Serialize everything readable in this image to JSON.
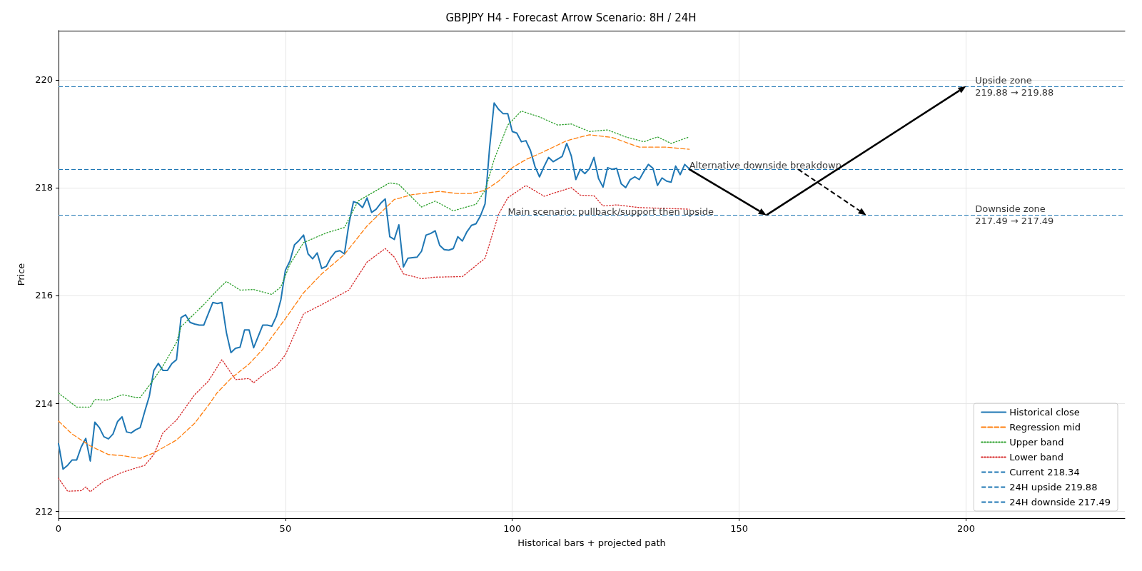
{
  "chart_data": {
    "type": "line",
    "title": "GBPJPY H4 - Forecast Arrow Scenario: 8H / 24H",
    "xlabel": "Historical bars + projected path",
    "ylabel": "Price",
    "x": [
      0,
      1,
      2,
      3,
      4,
      5,
      6,
      7,
      8,
      9,
      10,
      11,
      12,
      13,
      14,
      15,
      16,
      17,
      18,
      19,
      20,
      21,
      22,
      23,
      24,
      25,
      26,
      27,
      28,
      29,
      30,
      31,
      32,
      33,
      34,
      35,
      36,
      37,
      38,
      39,
      40,
      41,
      42,
      43,
      44,
      45,
      46,
      47,
      48,
      49,
      50,
      51,
      52,
      53,
      54,
      55,
      56,
      57,
      58,
      59,
      60,
      61,
      62,
      63,
      64,
      65,
      66,
      67,
      68,
      69,
      70,
      71,
      72,
      73,
      74,
      75,
      76,
      77,
      78,
      79,
      80,
      81,
      82,
      83,
      84,
      85,
      86,
      87,
      88,
      89,
      90,
      91,
      92,
      93,
      94,
      95,
      96,
      97,
      98,
      99,
      100,
      101,
      102,
      103,
      104,
      105,
      106,
      107,
      108,
      109,
      110,
      111,
      112,
      113,
      114,
      115,
      116,
      117,
      118,
      119,
      120,
      121,
      122,
      123,
      124,
      125,
      126,
      127,
      128,
      129,
      130,
      131,
      132,
      133,
      134,
      135,
      136,
      137,
      138,
      139
    ],
    "series": [
      {
        "name": "Historical close",
        "color": "#1f77b4",
        "line_style": "solid",
        "values": [
          213.25,
          212.78,
          212.85,
          212.95,
          212.95,
          213.19,
          213.35,
          212.93,
          213.65,
          213.55,
          213.38,
          213.34,
          213.43,
          213.66,
          213.75,
          213.47,
          213.45,
          213.51,
          213.55,
          213.85,
          214.13,
          214.61,
          214.74,
          214.61,
          214.61,
          214.74,
          214.81,
          215.59,
          215.64,
          215.5,
          215.47,
          215.45,
          215.45,
          215.66,
          215.87,
          215.85,
          215.87,
          215.31,
          214.94,
          215.02,
          215.04,
          215.36,
          215.36,
          215.03,
          215.24,
          215.45,
          215.45,
          215.43,
          215.61,
          215.92,
          216.47,
          216.64,
          216.94,
          217.02,
          217.12,
          216.77,
          216.68,
          216.79,
          216.5,
          216.54,
          216.7,
          216.81,
          216.83,
          216.77,
          217.33,
          217.74,
          217.71,
          217.63,
          217.81,
          217.54,
          217.6,
          217.71,
          217.79,
          217.09,
          217.04,
          217.31,
          216.53,
          216.69,
          216.7,
          216.71,
          216.82,
          217.12,
          217.15,
          217.2,
          216.93,
          216.85,
          216.84,
          216.87,
          217.09,
          217.01,
          217.18,
          217.3,
          217.33,
          217.48,
          217.7,
          218.74,
          219.57,
          219.45,
          219.37,
          219.37,
          219.04,
          219.01,
          218.85,
          218.87,
          218.69,
          218.39,
          218.2,
          218.39,
          218.56,
          218.48,
          218.53,
          218.58,
          218.82,
          218.59,
          218.15,
          218.34,
          218.26,
          218.35,
          218.56,
          218.17,
          218.01,
          218.37,
          218.34,
          218.36,
          218.07,
          218.0,
          218.15,
          218.2,
          218.15,
          218.3,
          218.43,
          218.36,
          218.04,
          218.18,
          218.12,
          218.1,
          218.4,
          218.24,
          218.43,
          218.35
        ]
      },
      {
        "name": "Regression mid",
        "color": "#ff7f0e",
        "line_style": "dashed",
        "x": [
          0,
          3,
          7,
          11,
          14,
          18,
          21,
          26,
          30,
          33,
          35,
          38,
          42,
          45,
          50,
          54,
          58,
          63,
          68,
          74,
          78,
          84,
          88,
          91,
          94,
          97,
          100,
          103,
          106,
          112,
          117,
          122,
          128,
          134,
          139
        ],
        "values": [
          213.67,
          213.43,
          213.21,
          213.05,
          213.03,
          212.98,
          213.08,
          213.32,
          213.63,
          213.96,
          214.2,
          214.46,
          214.73,
          215.0,
          215.57,
          216.05,
          216.4,
          216.76,
          217.29,
          217.78,
          217.87,
          217.93,
          217.89,
          217.89,
          217.95,
          218.12,
          218.37,
          218.52,
          218.63,
          218.87,
          218.98,
          218.93,
          218.75,
          218.75,
          218.71
        ]
      },
      {
        "name": "Upper band",
        "color": "#2ca02c",
        "line_style": "dotted",
        "x": [
          0,
          4,
          7,
          8,
          11,
          14,
          17,
          18,
          20,
          23,
          26,
          27,
          32,
          35,
          37,
          40,
          43,
          47,
          49,
          51,
          54,
          59,
          63,
          66,
          73,
          75,
          80,
          83,
          87,
          92,
          94,
          96,
          99,
          102,
          106,
          110,
          113,
          117,
          121,
          125,
          129,
          132,
          135,
          139
        ],
        "values": [
          214.19,
          213.93,
          213.93,
          214.07,
          214.06,
          214.16,
          214.11,
          214.11,
          214.33,
          214.69,
          215.13,
          215.42,
          215.83,
          216.1,
          216.26,
          216.1,
          216.11,
          216.02,
          216.16,
          216.58,
          216.98,
          217.16,
          217.26,
          217.75,
          218.09,
          218.06,
          217.64,
          217.75,
          217.57,
          217.69,
          217.95,
          218.52,
          219.16,
          219.42,
          219.31,
          219.16,
          219.18,
          219.04,
          219.07,
          218.94,
          218.85,
          218.94,
          218.82,
          218.94
        ]
      },
      {
        "name": "Lower band",
        "color": "#d62728",
        "line_style": "dotted",
        "x": [
          0,
          2,
          5,
          6,
          7,
          10,
          11,
          14,
          19,
          21,
          23,
          26,
          30,
          33,
          36,
          39,
          42,
          43,
          45,
          48,
          50,
          54,
          58,
          62,
          64,
          68,
          72,
          74,
          76,
          80,
          83,
          89,
          94,
          97,
          99,
          103,
          107,
          113,
          115,
          118,
          120,
          123,
          128,
          139
        ],
        "values": [
          212.61,
          212.37,
          212.38,
          212.45,
          212.36,
          212.56,
          212.6,
          212.72,
          212.85,
          213.05,
          213.45,
          213.69,
          214.16,
          214.41,
          214.81,
          214.44,
          214.46,
          214.38,
          214.52,
          214.69,
          214.9,
          215.66,
          215.83,
          216.01,
          216.1,
          216.62,
          216.87,
          216.71,
          216.4,
          216.31,
          216.34,
          216.35,
          216.69,
          217.51,
          217.81,
          218.04,
          217.84,
          218.0,
          217.86,
          217.85,
          217.66,
          217.68,
          217.63,
          217.6
        ]
      }
    ],
    "ref_lines": [
      {
        "axis": "y",
        "value": 218.34,
        "label": "Current 218.34",
        "color": "#1f77b4",
        "line_style": "dashed"
      },
      {
        "axis": "y",
        "value": 219.88,
        "label": "24H upside 219.88",
        "color": "#1f77b4",
        "line_style": "dashed"
      },
      {
        "axis": "y",
        "value": 217.49,
        "label": "24H downside 217.49",
        "color": "#1f77b4",
        "line_style": "dashed"
      }
    ],
    "annotations": [
      {
        "text": "Main scenario: pullback/support then upside",
        "x": 99,
        "y": 217.55
      },
      {
        "text": "Alternative downside breakdown",
        "x": 139,
        "y": 218.42
      },
      {
        "text": "Upside zone\n219.88 → 219.88",
        "x": 202,
        "y": 219.88
      },
      {
        "text": "Downside zone\n217.49 → 217.49",
        "x": 202,
        "y": 217.49
      }
    ],
    "xlim": [
      0,
      235
    ],
    "ylim": [
      211.87,
      220.91
    ],
    "xticks": [
      0,
      50,
      100,
      150,
      200
    ],
    "yticks": [
      212,
      214,
      216,
      218,
      220
    ],
    "grid": true,
    "legend": "bottom right"
  }
}
